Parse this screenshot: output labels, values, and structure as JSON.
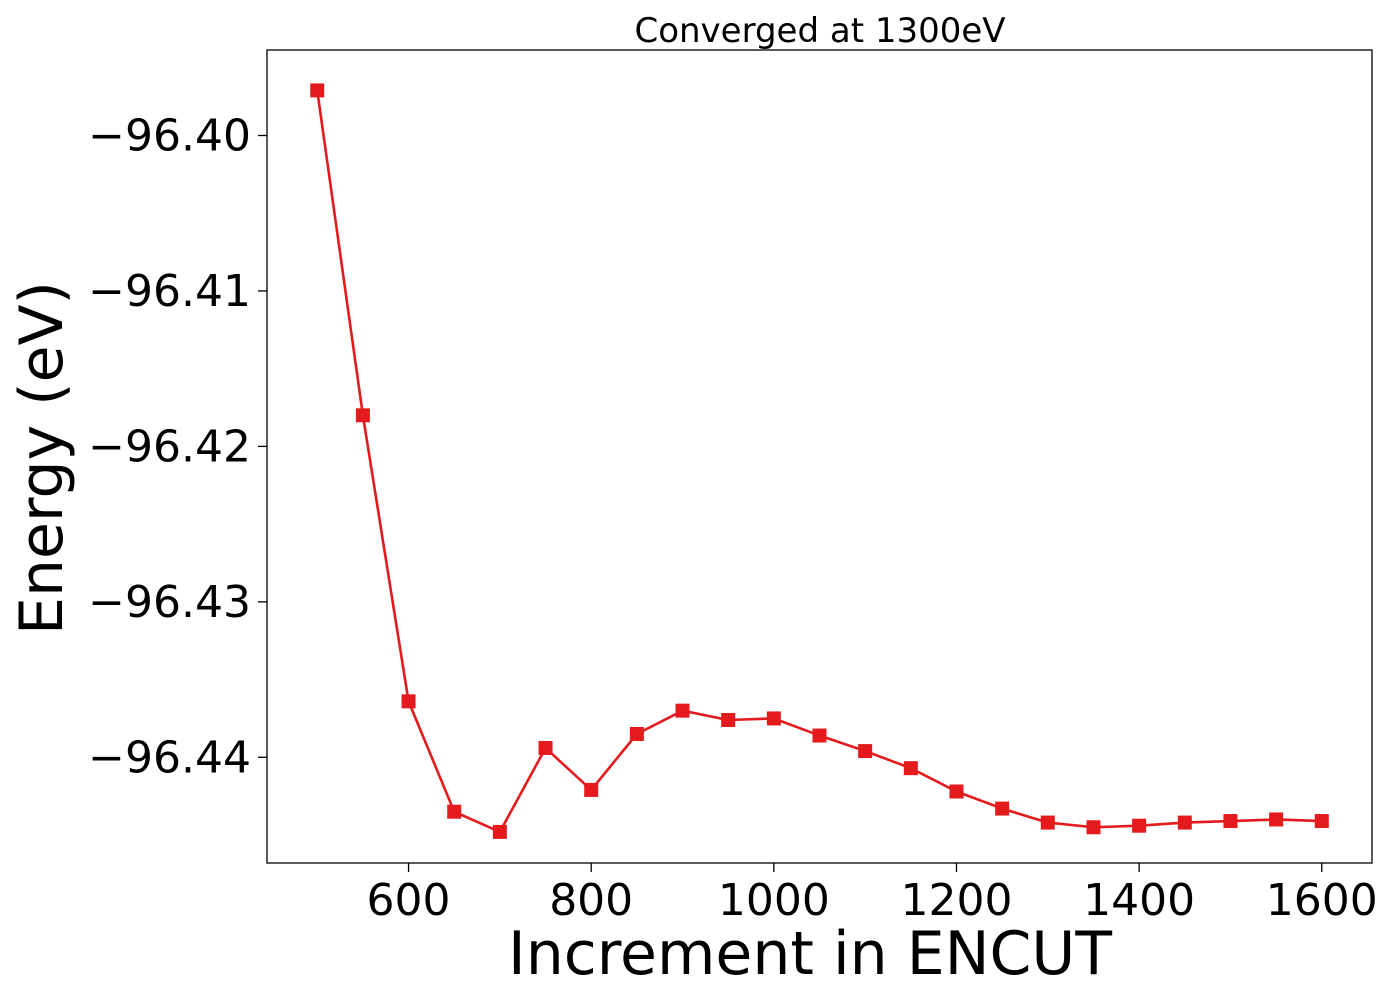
{
  "chart_data": {
    "type": "line",
    "title": "Converged at 1300eV",
    "xlabel": "Increment in ENCUT",
    "ylabel": "Energy (eV)",
    "xlim": [
      445,
      1655
    ],
    "ylim": [
      -96.4468,
      -96.3945
    ],
    "x_ticks": [
      600,
      800,
      1000,
      1200,
      1400,
      1600
    ],
    "x_tick_labels": [
      "600",
      "800",
      "1000",
      "1200",
      "1400",
      "1600"
    ],
    "y_ticks": [
      -96.4,
      -96.41,
      -96.42,
      -96.43,
      -96.44
    ],
    "y_tick_labels": [
      "−96.40",
      "−96.41",
      "−96.42",
      "−96.43",
      "−96.44"
    ],
    "grid": false,
    "legend": "none",
    "series": [
      {
        "color": "#e41a1c",
        "marker": "square",
        "x": [
          500,
          550,
          600,
          650,
          700,
          750,
          800,
          850,
          900,
          950,
          1000,
          1050,
          1100,
          1150,
          1200,
          1250,
          1300,
          1350,
          1400,
          1450,
          1500,
          1550,
          1600
        ],
        "y": [
          -96.3971,
          -96.418,
          -96.4364,
          -96.4435,
          -96.4448,
          -96.4394,
          -96.4421,
          -96.4385,
          -96.437,
          -96.4376,
          -96.4375,
          -96.4386,
          -96.4396,
          -96.4407,
          -96.4422,
          -96.4433,
          -96.4442,
          -96.4445,
          -96.4444,
          -96.4442,
          -96.4441,
          -96.444,
          -96.4441
        ]
      }
    ]
  }
}
